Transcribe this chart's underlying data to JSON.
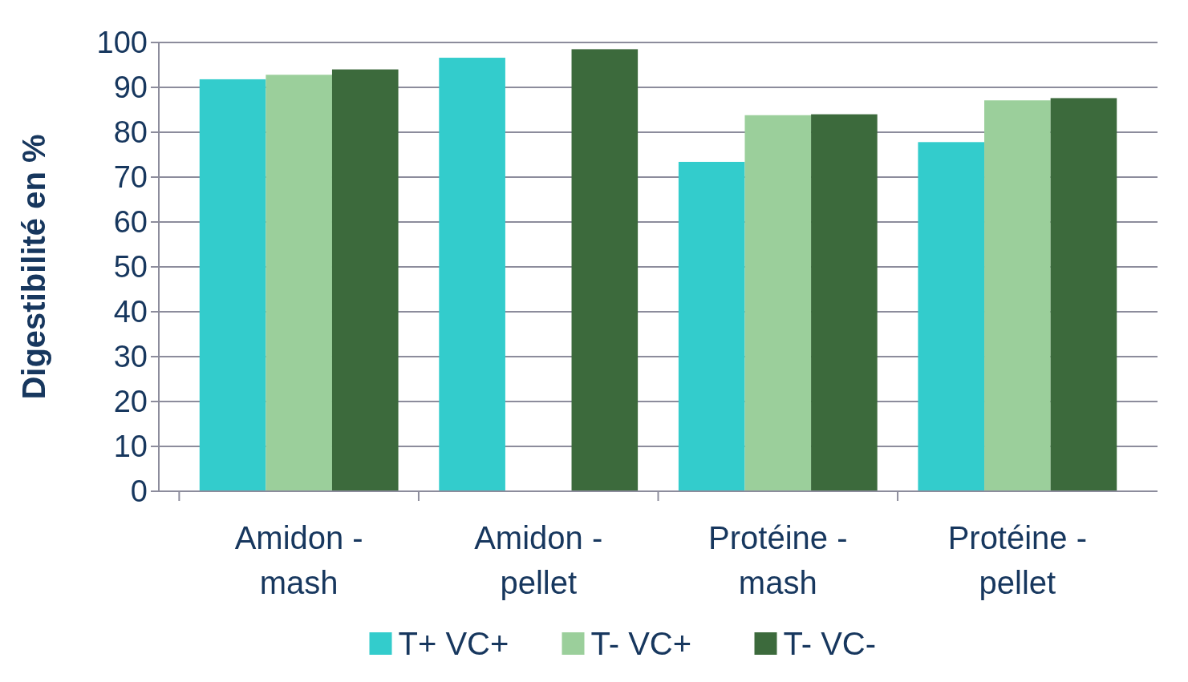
{
  "chart_data": {
    "type": "bar",
    "ylabel": "Digestibilité en %",
    "categories": [
      "Amidon - mash",
      "Amidon - pellet",
      "Protéine - mash",
      "Protéine - pellet"
    ],
    "series": [
      {
        "name": "T+ VC+",
        "color": "#33cccc",
        "values": [
          91.8,
          96.6,
          73.4,
          77.8
        ]
      },
      {
        "name": "T- VC+",
        "color": "#9bcf9b",
        "values": [
          92.8,
          null,
          83.8,
          87.1
        ]
      },
      {
        "name": "T- VC-",
        "color": "#3c6a3c",
        "values": [
          94,
          98.5,
          84,
          87.6
        ]
      }
    ],
    "ylim": [
      0,
      100
    ],
    "yticks": [
      0,
      10,
      20,
      30,
      40,
      50,
      60,
      70,
      80,
      90,
      100
    ],
    "grid": "y",
    "legend": "bottom"
  }
}
